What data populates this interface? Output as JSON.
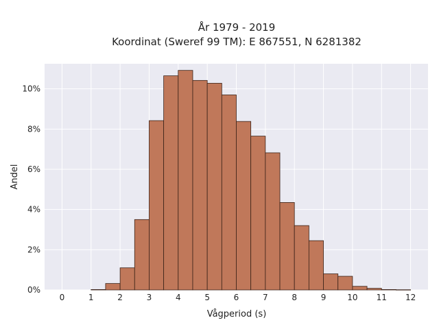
{
  "chart_data": {
    "type": "bar",
    "title": "År 1979 - 2019",
    "subtitle": "Koordinat (Sweref 99 TM): E 867551, N 6281382",
    "xlabel": "Vågperiod (s)",
    "ylabel": "Andel",
    "xlim": [
      -0.6,
      12.6
    ],
    "ylim": [
      0,
      11.25
    ],
    "x_ticks": [
      0,
      1,
      2,
      3,
      4,
      5,
      6,
      7,
      8,
      9,
      10,
      11,
      12
    ],
    "y_ticks": [
      0,
      2,
      4,
      6,
      8,
      10
    ],
    "y_tick_labels": [
      "0%",
      "2%",
      "4%",
      "6%",
      "8%",
      "10%"
    ],
    "bin_width": 0.5,
    "bins": [
      {
        "x0": 1.0,
        "x1": 1.5,
        "value": 0.02
      },
      {
        "x0": 1.5,
        "x1": 2.0,
        "value": 0.32
      },
      {
        "x0": 2.0,
        "x1": 2.5,
        "value": 1.1
      },
      {
        "x0": 2.5,
        "x1": 3.0,
        "value": 3.5
      },
      {
        "x0": 3.0,
        "x1": 3.5,
        "value": 8.42
      },
      {
        "x0": 3.5,
        "x1": 4.0,
        "value": 10.65
      },
      {
        "x0": 4.0,
        "x1": 4.5,
        "value": 10.92
      },
      {
        "x0": 4.5,
        "x1": 5.0,
        "value": 10.42
      },
      {
        "x0": 5.0,
        "x1": 5.5,
        "value": 10.28
      },
      {
        "x0": 5.5,
        "x1": 6.0,
        "value": 9.7
      },
      {
        "x0": 6.0,
        "x1": 6.5,
        "value": 8.38
      },
      {
        "x0": 6.5,
        "x1": 7.0,
        "value": 7.65
      },
      {
        "x0": 7.0,
        "x1": 7.5,
        "value": 6.82
      },
      {
        "x0": 7.5,
        "x1": 8.0,
        "value": 4.35
      },
      {
        "x0": 8.0,
        "x1": 8.5,
        "value": 3.2
      },
      {
        "x0": 8.5,
        "x1": 9.0,
        "value": 2.45
      },
      {
        "x0": 9.0,
        "x1": 9.5,
        "value": 0.8
      },
      {
        "x0": 9.5,
        "x1": 10.0,
        "value": 0.68
      },
      {
        "x0": 10.0,
        "x1": 10.5,
        "value": 0.18
      },
      {
        "x0": 10.5,
        "x1": 11.0,
        "value": 0.08
      },
      {
        "x0": 11.0,
        "x1": 11.5,
        "value": 0.02
      },
      {
        "x0": 11.5,
        "x1": 12.0,
        "value": 0.01
      }
    ],
    "grid": true,
    "colors": {
      "bar_fill": "#c0785a",
      "bar_edge": "#3a2218",
      "plot_background": "#eaeaf2",
      "grid": "#ffffff"
    }
  }
}
